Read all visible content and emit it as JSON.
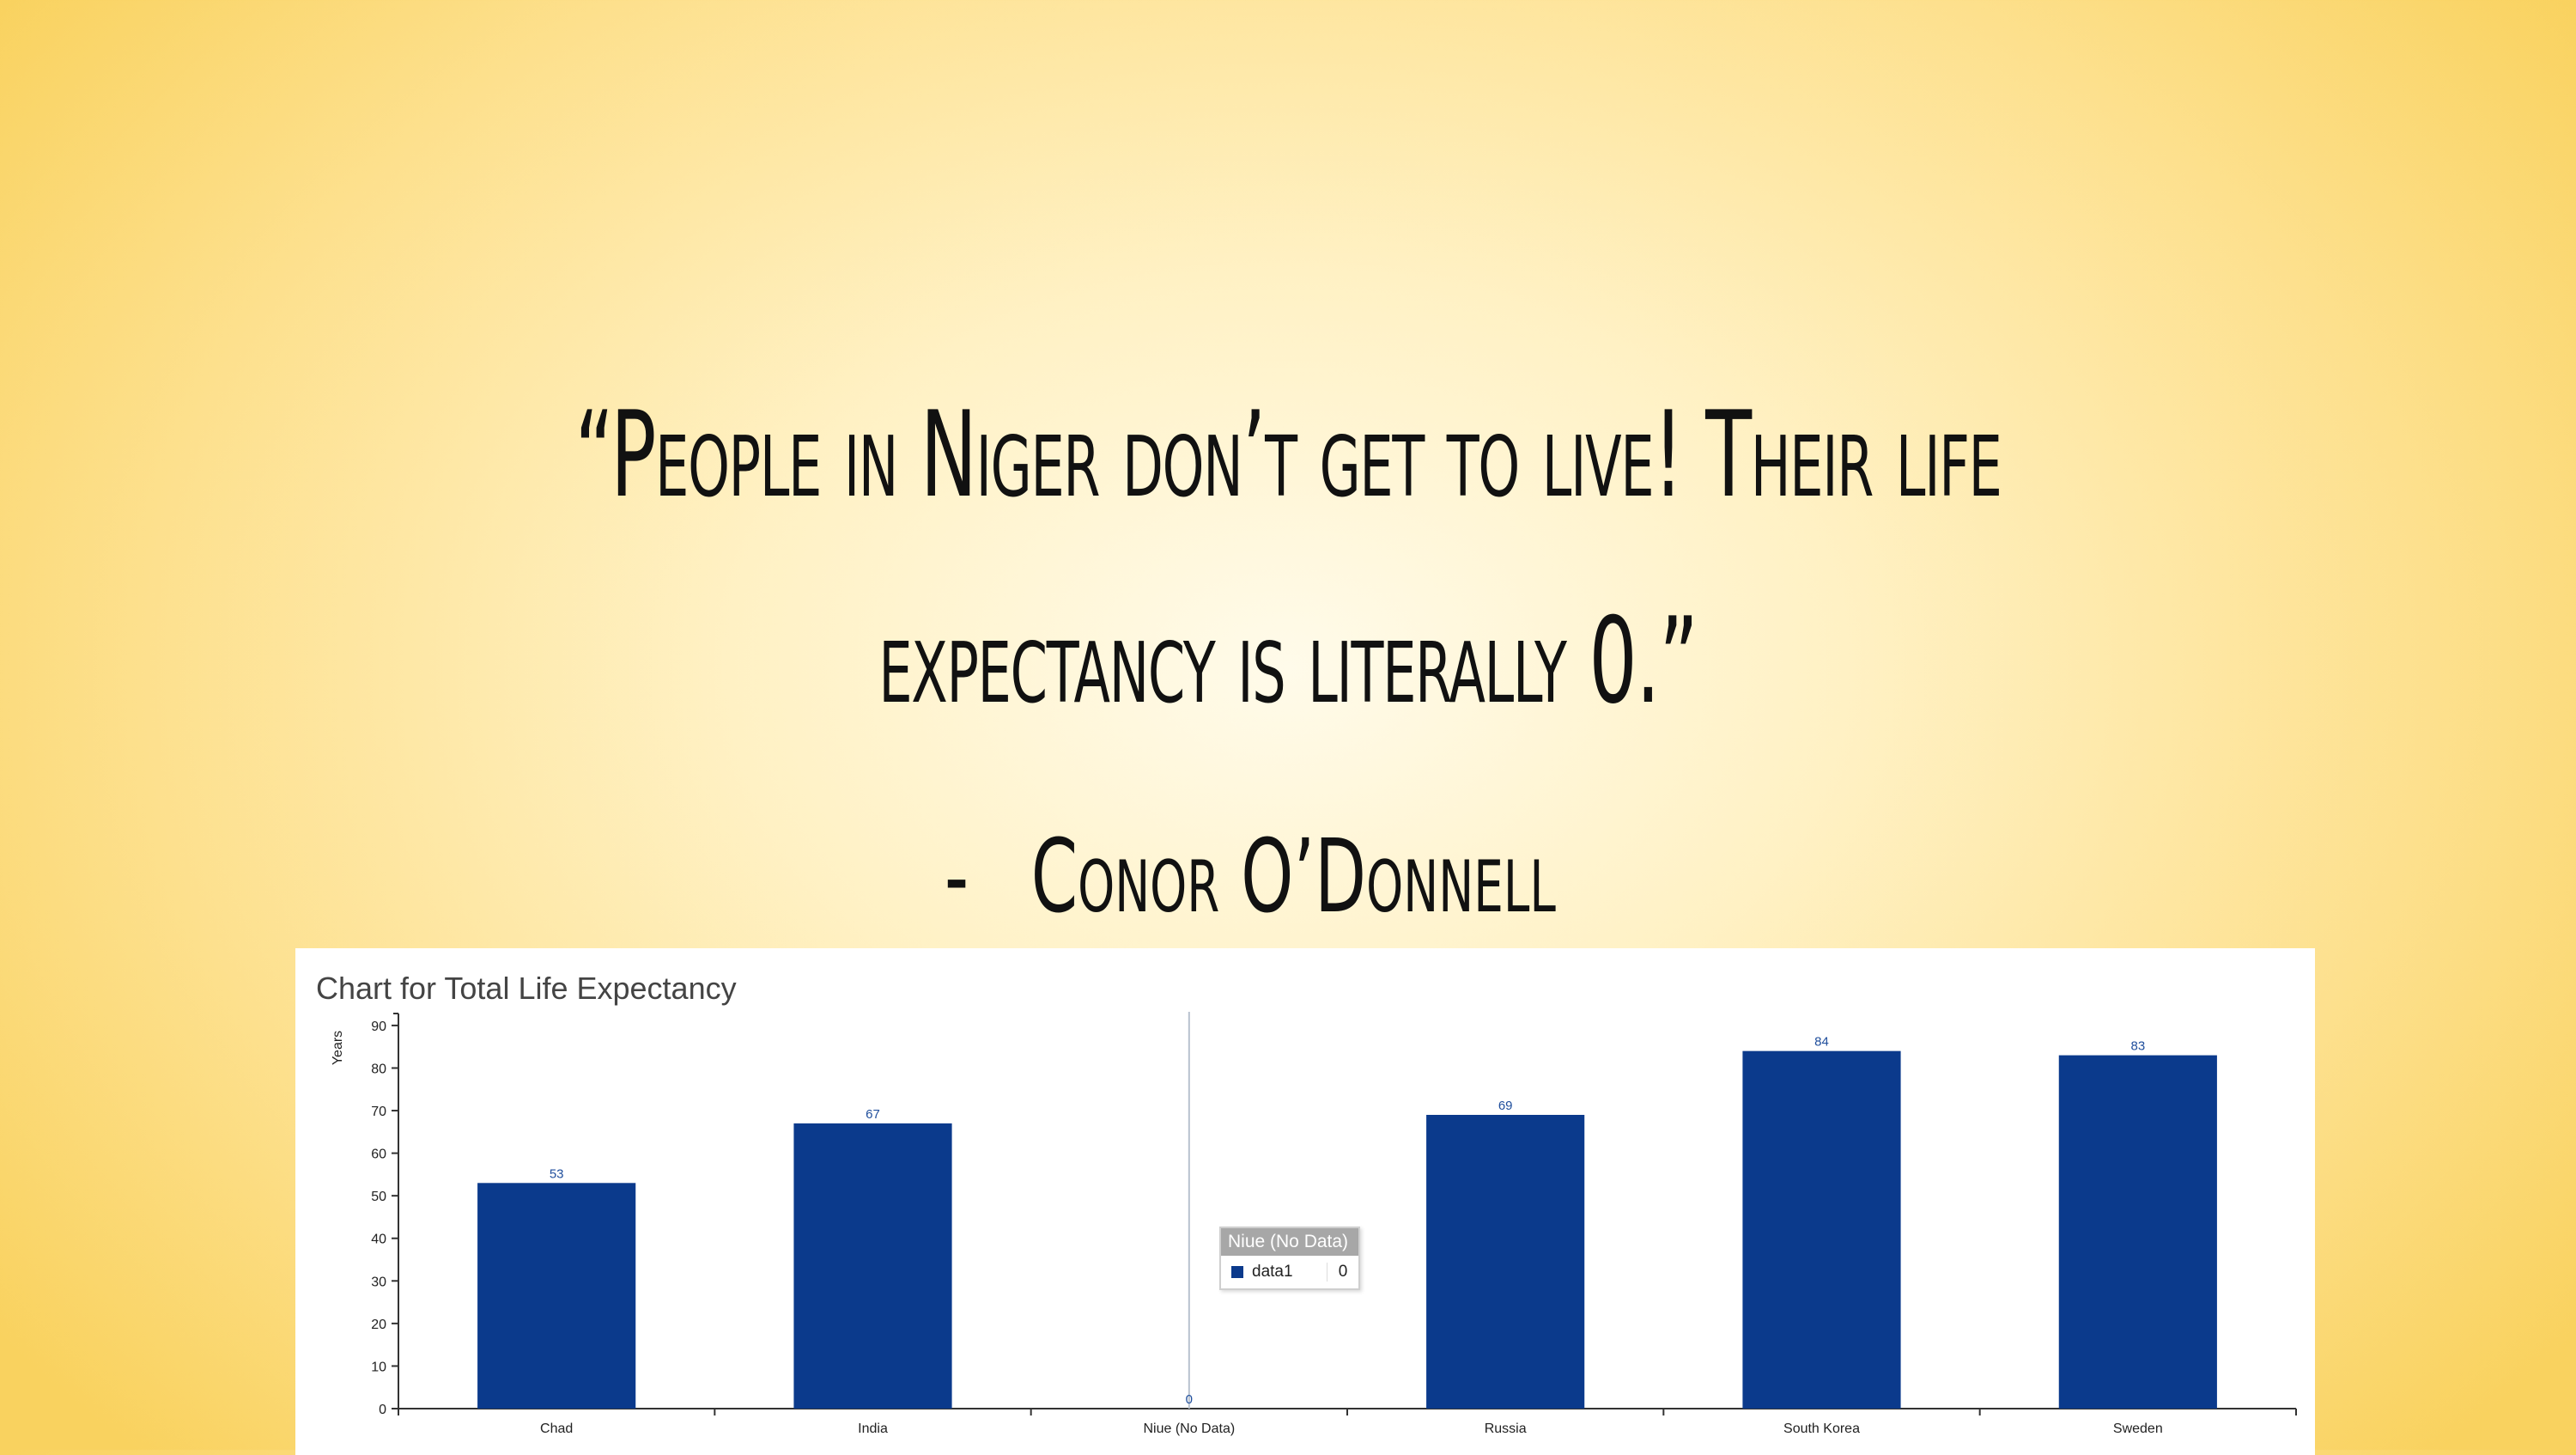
{
  "quote": {
    "line1": "“People in Niger don’t get to live! Their life",
    "line2": "expectancy is literally 0.”"
  },
  "author": {
    "dash": "-",
    "name": "Conor O’Donnell"
  },
  "tooltip": {
    "title": "Niue (No Data)",
    "series_name": "data1",
    "value": "0",
    "swatch_color": "#0b3a8c"
  },
  "annotation": {
    "icon": "hand-drawn-arrow-icon"
  },
  "chart_data": {
    "type": "bar",
    "title": "Chart for Total Life Expectancy",
    "ylabel": "Years",
    "xlabel": "",
    "categories": [
      "Chad",
      "India",
      "Niue (No Data)",
      "Russia",
      "South Korea",
      "Sweden"
    ],
    "values": [
      53,
      67,
      0,
      69,
      84,
      83
    ],
    "value_labels": [
      "53",
      "67",
      "0",
      "69",
      "84",
      "83"
    ],
    "ylim": [
      0,
      92
    ],
    "yticks": [
      0,
      10,
      20,
      30,
      40,
      50,
      60,
      70,
      80,
      90
    ],
    "bar_color": "#0b3a8c",
    "highlighted_category": "Niue (No Data)",
    "grid": false,
    "legend": "none"
  }
}
